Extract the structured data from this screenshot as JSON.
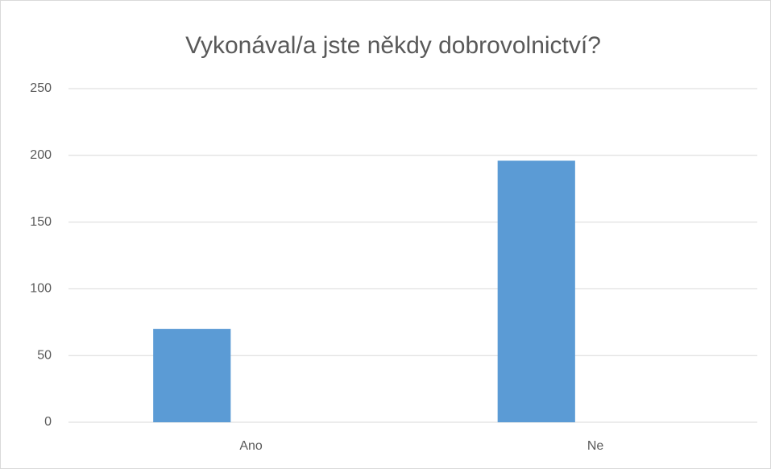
{
  "chart_data": {
    "type": "bar",
    "title": "Vykonával/a jste někdy dobrovolnictví?",
    "categories": [
      "Ano",
      "Ne"
    ],
    "values": [
      70,
      196
    ],
    "color": "#5b9bd5",
    "ylim": [
      0,
      250
    ],
    "yticks": [
      0,
      50,
      100,
      150,
      200,
      250
    ],
    "grid": true
  }
}
